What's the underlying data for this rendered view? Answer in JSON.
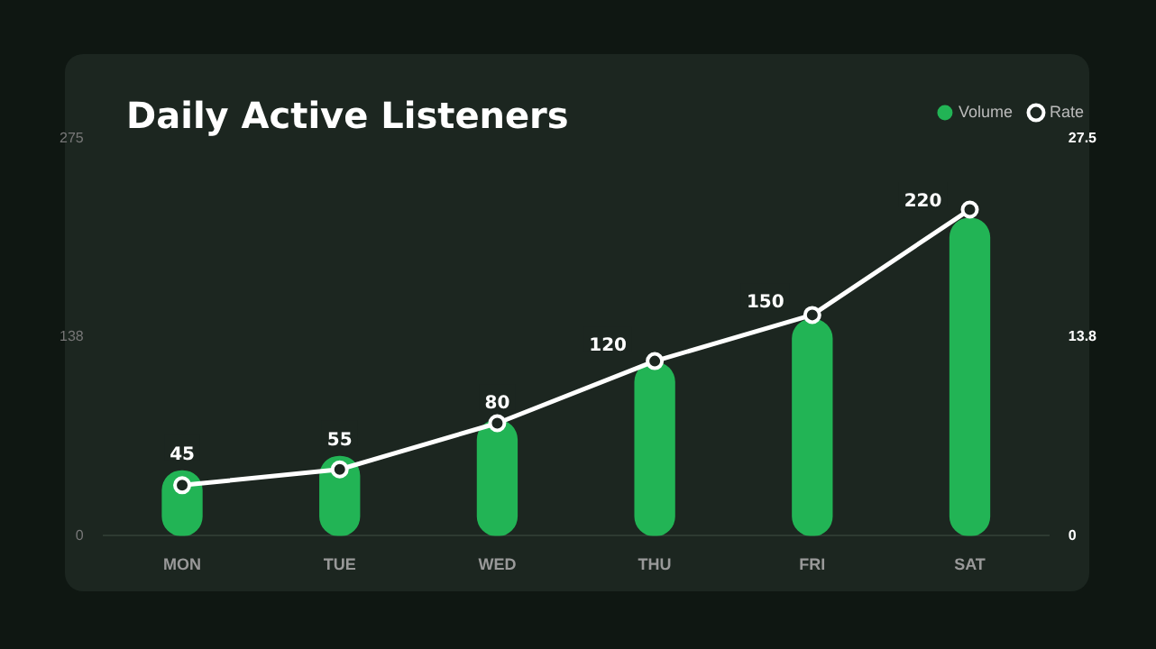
{
  "chart_data": {
    "type": "bar",
    "title": "Daily Active Listeners",
    "categories": [
      "MON",
      "TUE",
      "WED",
      "THU",
      "FRI",
      "SAT"
    ],
    "series": [
      {
        "name": "Volume",
        "color": "#22b455",
        "values": [
          45,
          55,
          80,
          120,
          150,
          220
        ]
      },
      {
        "name": "Rate",
        "type": "line",
        "axis": "y2",
        "color": "#ffffff",
        "values": [
          3.5,
          4.6,
          7.8,
          12.1,
          15.3,
          22.6
        ]
      }
    ],
    "ylim": [
      0,
      275
    ],
    "yticks": [
      0,
      138,
      275
    ],
    "y2lim": [
      0,
      27.5
    ],
    "y2ticks": [
      0,
      13.8,
      27.5
    ],
    "value_labels": [
      "45",
      "55",
      "80",
      "120",
      "150",
      "220"
    ],
    "legend": "top right",
    "marker": "circle",
    "line_style": "solid"
  }
}
